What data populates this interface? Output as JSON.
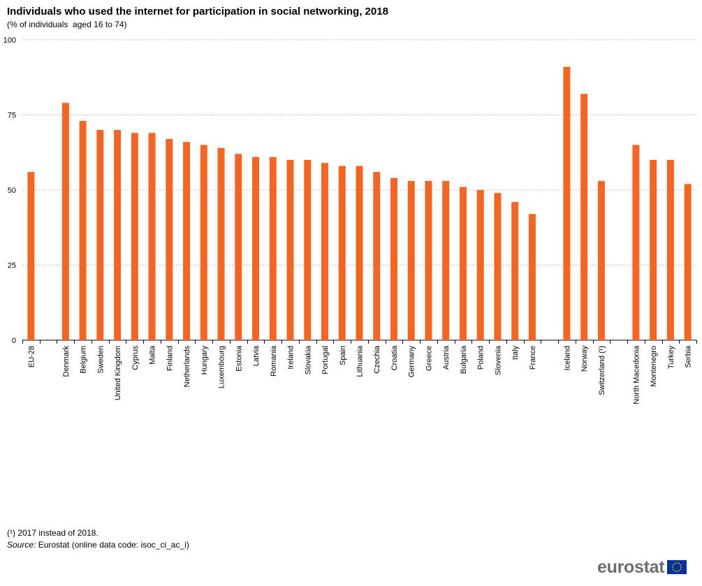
{
  "title": "Individuals who used the internet for participation in social networking, 2018",
  "subtitle": "(% of individuals  aged 16 to 74)",
  "footnote": "(¹) 2017 instead of 2018.",
  "source_label": "Source:",
  "source_text": " Eurostat (online data code: isoc_ci_ac_i)",
  "logo_text": "eurostat",
  "colors": {
    "bar": "#f26522",
    "grid": "#bfbfbf",
    "axis": "#000000",
    "flag_blue": "#003399",
    "flag_star": "#ffcc00"
  },
  "chart_data": {
    "type": "bar",
    "categories": [
      "EU-28",
      "",
      "Denmark",
      "Belgium",
      "Sweden",
      "United Kingdom",
      "Cyprus",
      "Malta",
      "Finland",
      "Netherlands",
      "Hungary",
      "Luxembourg",
      "Estonia",
      "Latvia",
      "Romania",
      "Ireland",
      "Slovakia",
      "Portugal",
      "Spain",
      "Lithuania",
      "Czechia",
      "Croatia",
      "Germany",
      "Greece",
      "Austria",
      "Bulgaria",
      "Poland",
      "Slovenia",
      "Italy",
      "France",
      "",
      "Iceland",
      "Norway",
      "Switzerland (¹)",
      "",
      "North Macedonia",
      "Montenegro",
      "Turkey",
      "Serbia"
    ],
    "values": [
      56,
      null,
      79,
      73,
      70,
      70,
      69,
      69,
      67,
      66,
      65,
      64,
      62,
      61,
      61,
      60,
      60,
      59,
      58,
      58,
      56,
      54,
      53,
      53,
      53,
      51,
      50,
      49,
      46,
      42,
      null,
      91,
      82,
      53,
      null,
      65,
      60,
      60,
      52
    ],
    "yticks": [
      0,
      25,
      50,
      75,
      100
    ],
    "ylim": [
      0,
      100
    ],
    "grid": true,
    "title": "Individuals who used the internet for participation in social networking, 2018",
    "subtitle": "(% of individuals  aged 16 to 74)",
    "xlabel": "",
    "ylabel": ""
  }
}
